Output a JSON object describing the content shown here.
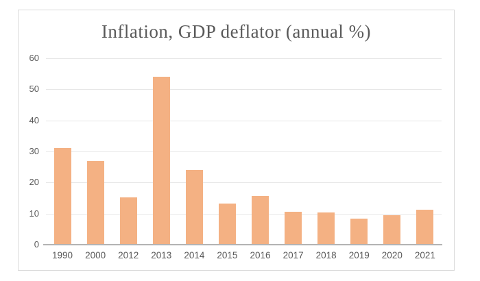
{
  "page": {
    "background_color": "#ffffff"
  },
  "chart": {
    "frame_border_color": "#d9d9d9",
    "bar_color": "#f4b183",
    "gridline_color": "#e7e7e7",
    "axis_line_color": "#b3b3b3",
    "text_color": "#595959",
    "title_color": "#595959"
  },
  "chart_data": {
    "type": "bar",
    "title": "Inflation, GDP deflator (annual %)",
    "categories": [
      "1990",
      "2000",
      "2012",
      "2013",
      "2014",
      "2015",
      "2016",
      "2017",
      "2018",
      "2019",
      "2020",
      "2021"
    ],
    "values": [
      31,
      27,
      15.2,
      54,
      24,
      13.3,
      15.6,
      10.6,
      10.4,
      8.3,
      9.4,
      11.3
    ],
    "series": [
      {
        "name": "Inflation, GDP deflator (annual %)",
        "values": [
          31,
          27,
          15.2,
          54,
          24,
          13.3,
          15.6,
          10.6,
          10.4,
          8.3,
          9.4,
          11.3
        ]
      }
    ],
    "xlabel": "",
    "ylabel": "",
    "ylim": [
      0,
      60
    ],
    "yticks": [
      0,
      10,
      20,
      30,
      40,
      50,
      60
    ],
    "grid": true,
    "legend_position": "none"
  }
}
